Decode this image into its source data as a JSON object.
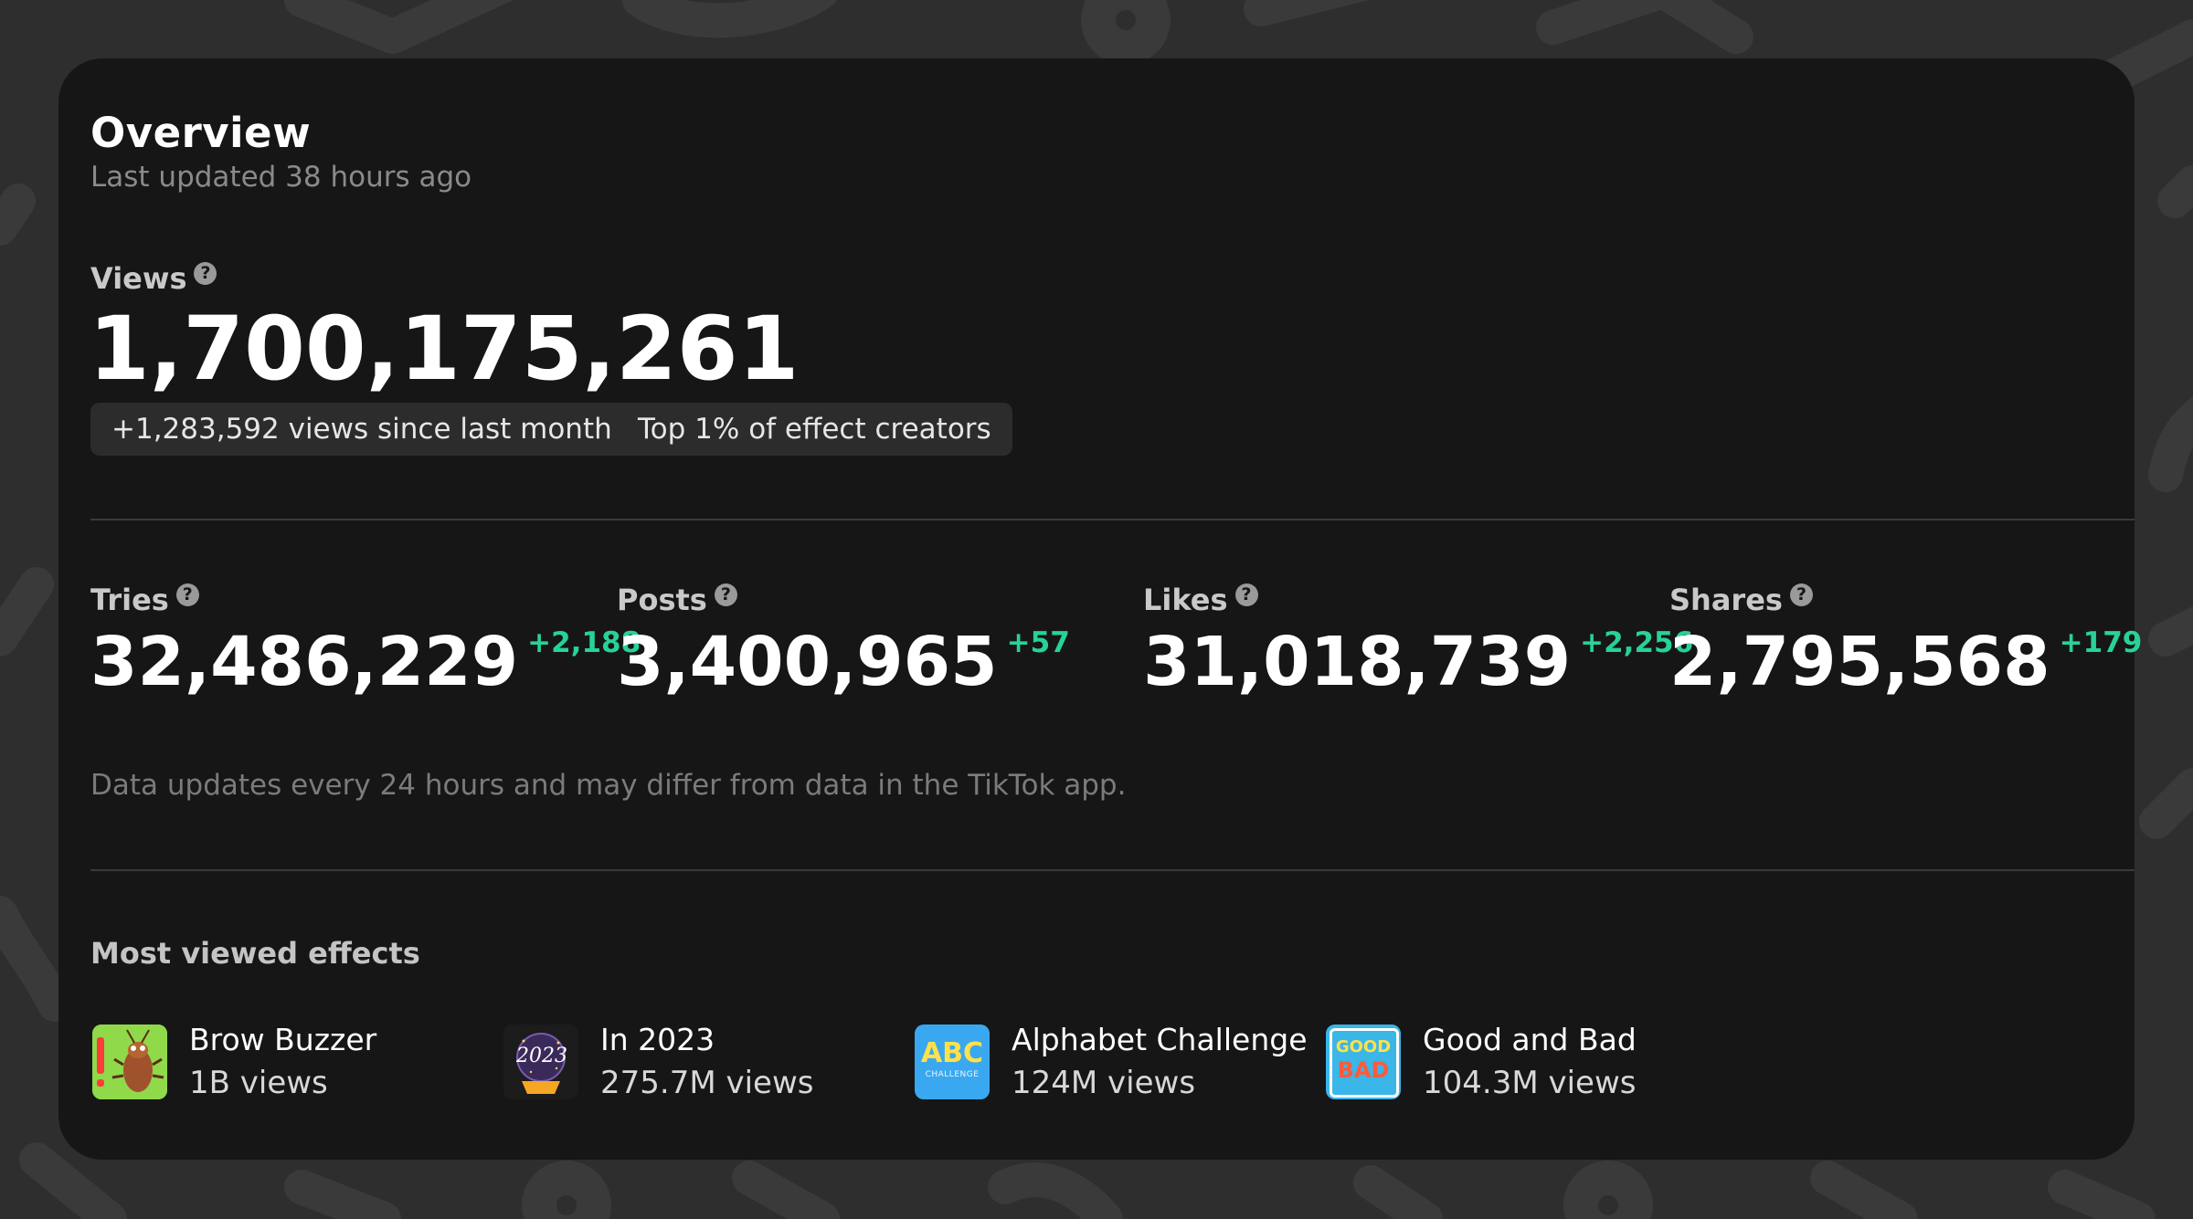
{
  "overview": {
    "title": "Overview",
    "subtitle": "Last updated 38 hours ago"
  },
  "views": {
    "label": "Views",
    "value": "1,700,175,261",
    "pills": [
      "+1,283,592 views since last month",
      "Top 1% of effect creators"
    ]
  },
  "stats": [
    {
      "label": "Tries",
      "value": "32,486,229",
      "delta": "+2,188"
    },
    {
      "label": "Posts",
      "value": "3,400,965",
      "delta": "+57"
    },
    {
      "label": "Likes",
      "value": "31,018,739",
      "delta": "+2,256"
    },
    {
      "label": "Shares",
      "value": "2,795,568",
      "delta": "+179"
    }
  ],
  "note": "Data updates every 24 hours and may differ from data in the TikTok app.",
  "most_viewed": {
    "title": "Most viewed effects",
    "items": [
      {
        "name": "Brow Buzzer",
        "views": "1B views",
        "icon": "cockroach-icon"
      },
      {
        "name": "In 2023",
        "views": "275.7M views",
        "icon": "crystal-ball-2023-icon"
      },
      {
        "name": "Alphabet Challenge",
        "views": "124M views",
        "icon": "abc-challenge-icon",
        "icon_text": "ABC",
        "icon_subtext": "CHALLENGE"
      },
      {
        "name": "Good and Bad",
        "views": "104.3M views",
        "icon": "good-bad-icon",
        "icon_text": "GOOD",
        "icon_subtext": "BAD"
      }
    ]
  },
  "colors": {
    "background": "#2e2e2e",
    "card": "#161616",
    "pill": "#2c2c2c",
    "delta_green": "#27d29a",
    "muted_text": "#8a8a8a"
  }
}
